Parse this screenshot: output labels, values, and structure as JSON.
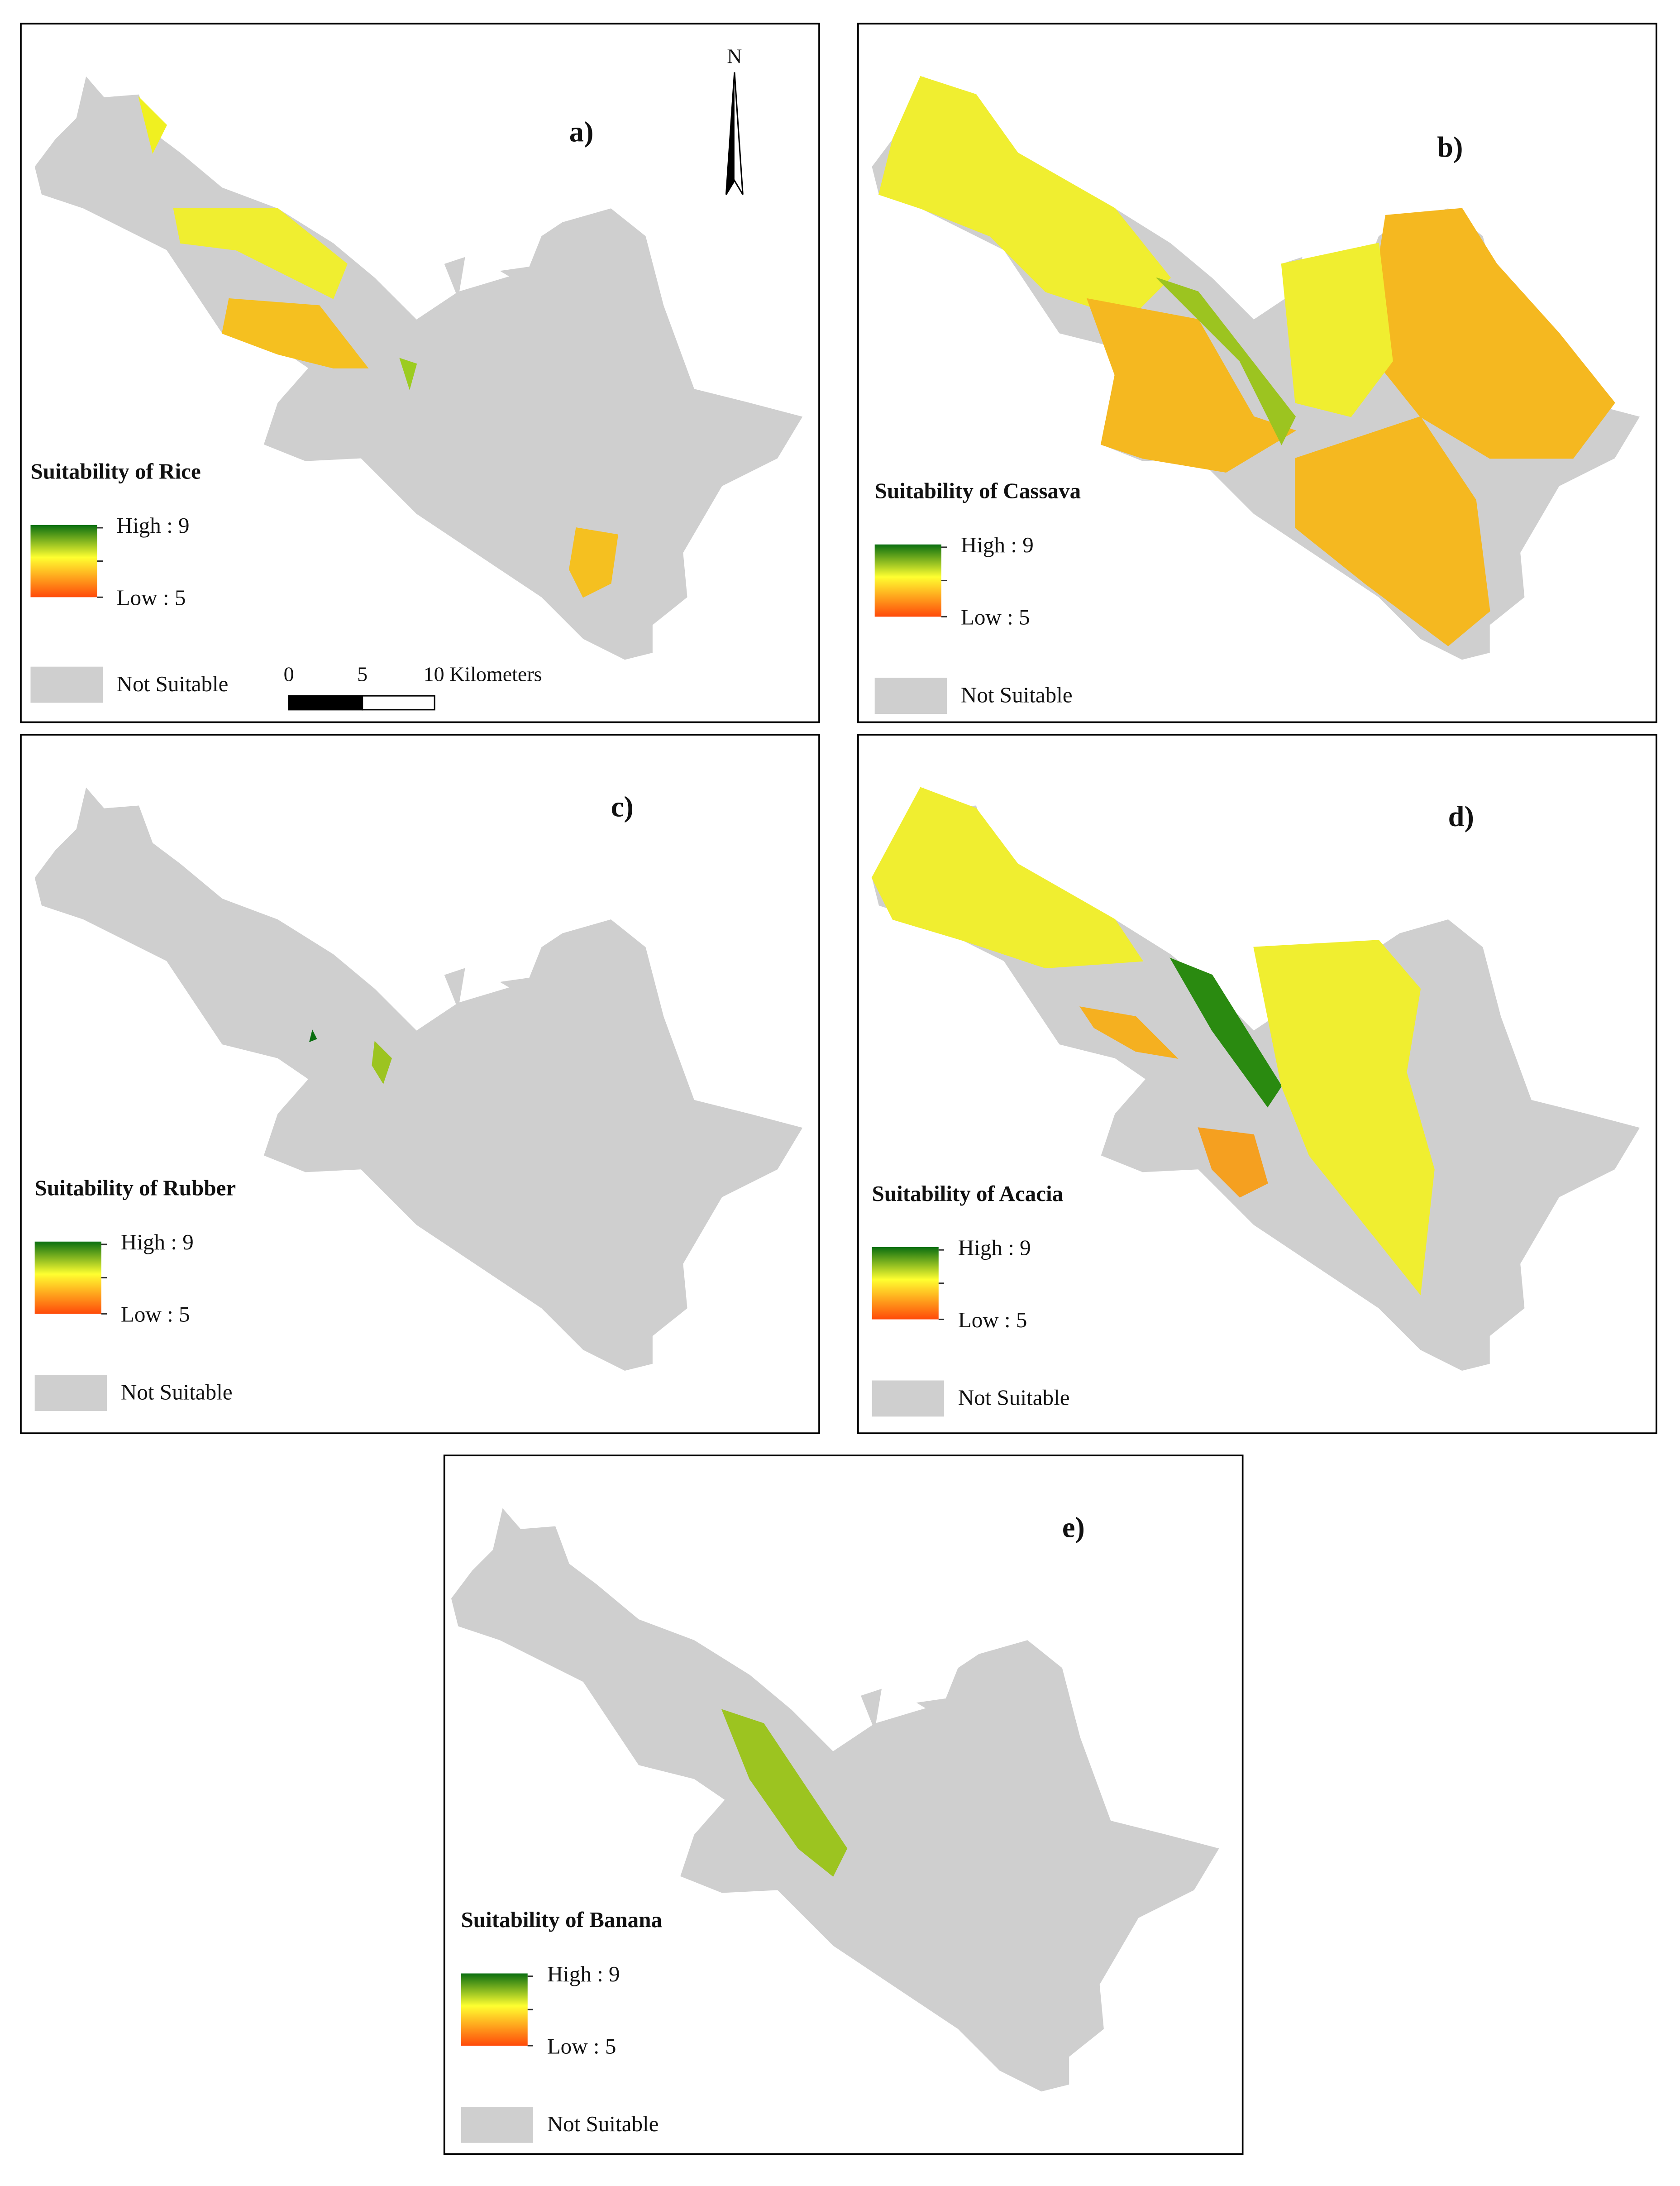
{
  "north_arrow": "N",
  "scale_bar": {
    "labels": [
      "0",
      "5",
      "10 Kilometers"
    ]
  },
  "panels": [
    {
      "label": "a)",
      "title": "Suitability of Rice",
      "legend": {
        "high": "High : 9",
        "low": "Low : 5",
        "not_suitable": "Not Suitable"
      }
    },
    {
      "label": "b)",
      "title": "Suitability of Cassava",
      "legend": {
        "high": "High : 9",
        "low": "Low : 5",
        "not_suitable": "Not Suitable"
      }
    },
    {
      "label": "c)",
      "title": "Suitability of Rubber",
      "legend": {
        "high": "High : 9",
        "low": "Low : 5",
        "not_suitable": "Not Suitable"
      }
    },
    {
      "label": "d)",
      "title": "Suitability of Acacia",
      "legend": {
        "high": "High : 9",
        "low": "Low : 5",
        "not_suitable": "Not Suitable"
      }
    },
    {
      "label": "e)",
      "title": "Suitability of Banana",
      "legend": {
        "high": "High : 9",
        "low": "Low : 5",
        "not_suitable": "Not Suitable"
      }
    }
  ]
}
